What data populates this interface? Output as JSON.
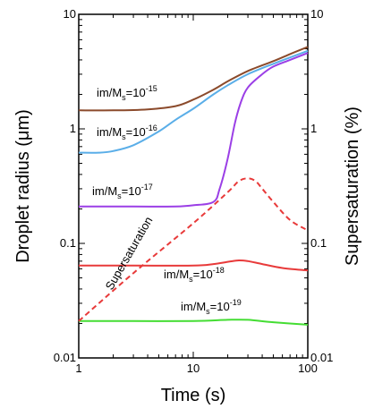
{
  "chart_data": {
    "type": "line",
    "title": "",
    "xlabel": "Time (s)",
    "ylabel_left": "Droplet radius (μm)",
    "ylabel_right": "Supersaturation (%)",
    "x_scale": "log",
    "y_scale": "log",
    "xlim": [
      1,
      100
    ],
    "ylim": [
      0.01,
      10
    ],
    "x_ticks": [
      "1",
      "10",
      "100"
    ],
    "y_ticks": [
      "0.01",
      "0.1",
      "1",
      "10"
    ],
    "y_right_ticks": [
      "0.01",
      "0.1",
      "1",
      "10"
    ],
    "grid": false,
    "series": [
      {
        "name": "im/Ms=10-15",
        "label_parts": {
          "pre": "im/M",
          "sub": "s",
          "mid": "=10",
          "sup": "-15"
        },
        "color": "#8b4a2b",
        "style": "solid",
        "x": [
          1,
          2,
          4,
          7,
          10,
          15,
          20,
          30,
          50,
          70,
          100
        ],
        "y": [
          1.45,
          1.45,
          1.48,
          1.58,
          1.8,
          2.2,
          2.6,
          3.2,
          3.9,
          4.5,
          5.2
        ]
      },
      {
        "name": "im/Ms=10-16",
        "label_parts": {
          "pre": "im/M",
          "sub": "s",
          "mid": "=10",
          "sup": "-16"
        },
        "color": "#5aaee8",
        "style": "solid",
        "x": [
          1,
          1.5,
          2,
          3,
          5,
          7,
          10,
          15,
          20,
          30,
          50,
          70,
          100
        ],
        "y": [
          0.62,
          0.62,
          0.64,
          0.72,
          0.95,
          1.2,
          1.5,
          2.0,
          2.4,
          3.0,
          3.7,
          4.2,
          4.8
        ]
      },
      {
        "name": "im/Ms=10-17",
        "label_parts": {
          "pre": "im/M",
          "sub": "s",
          "mid": "=10",
          "sup": "-17"
        },
        "color": "#9b3fe6",
        "style": "solid",
        "x": [
          1,
          3,
          7,
          10,
          15,
          17,
          20,
          23,
          26,
          30,
          40,
          50,
          70,
          100
        ],
        "y": [
          0.21,
          0.21,
          0.21,
          0.215,
          0.23,
          0.3,
          0.55,
          1.1,
          1.7,
          2.3,
          3.0,
          3.5,
          4.0,
          4.6
        ]
      },
      {
        "name": "im/Ms=10-18",
        "label_parts": {
          "pre": "im/M",
          "sub": "s",
          "mid": "=10",
          "sup": "-18"
        },
        "color": "#e83a3a",
        "style": "solid",
        "x": [
          1,
          3,
          10,
          15,
          20,
          25,
          30,
          40,
          60,
          100
        ],
        "y": [
          0.064,
          0.064,
          0.064,
          0.066,
          0.069,
          0.071,
          0.07,
          0.066,
          0.061,
          0.058
        ]
      },
      {
        "name": "im/Ms=10-19",
        "label_parts": {
          "pre": "im/M",
          "sub": "s",
          "mid": "=10",
          "sup": "-19"
        },
        "color": "#44dd33",
        "style": "solid",
        "x": [
          1,
          3,
          10,
          20,
          30,
          50,
          100
        ],
        "y": [
          0.021,
          0.021,
          0.021,
          0.0215,
          0.0215,
          0.0205,
          0.0195
        ]
      },
      {
        "name": "Supersaturation",
        "label_parts": {
          "pre": "Supersaturation",
          "sub": "",
          "mid": "",
          "sup": ""
        },
        "color": "#e83a3a",
        "style": "dashed",
        "x": [
          1,
          3,
          10,
          20,
          25,
          30,
          35,
          40,
          50,
          70,
          100
        ],
        "y": [
          0.021,
          0.055,
          0.15,
          0.28,
          0.35,
          0.37,
          0.35,
          0.3,
          0.23,
          0.16,
          0.13
        ]
      }
    ]
  }
}
